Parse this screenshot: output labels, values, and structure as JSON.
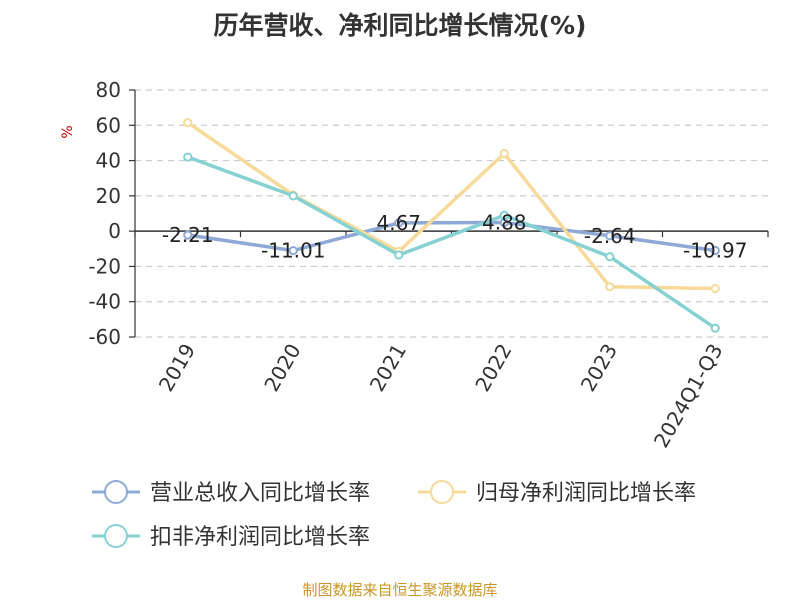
{
  "chart_data": {
    "type": "line",
    "title": "历年营收、净利同比增长情况(%)",
    "ylabel": "%",
    "xlabel": "",
    "categories": [
      "2019",
      "2020",
      "2021",
      "2022",
      "2023",
      "2024Q1-Q3"
    ],
    "ylim": [
      -60,
      80
    ],
    "yticks": [
      80,
      60,
      40,
      20,
      0,
      -20,
      -40,
      -60
    ],
    "grid": true,
    "legend_position": "bottom",
    "series": [
      {
        "name": "营业总收入同比增长率",
        "color": "#8fa9d6",
        "values": [
          -2.21,
          -11.01,
          4.67,
          4.88,
          -2.64,
          -10.97
        ],
        "labels": [
          "-2.21",
          "-11.01",
          "4.67",
          "4.88",
          "-2.64",
          "-10.97"
        ]
      },
      {
        "name": "归母净利润同比增长率",
        "color": "#f7d99a",
        "values": [
          61.5,
          20.5,
          -11.5,
          44.0,
          -31.5,
          -32.5
        ]
      },
      {
        "name": "扣非净利润同比增长率",
        "color": "#86d1d2",
        "values": [
          42.0,
          20.0,
          -13.5,
          9.0,
          -14.5,
          -55.0
        ]
      }
    ]
  },
  "source": "制图数据来自恒生聚源数据库"
}
